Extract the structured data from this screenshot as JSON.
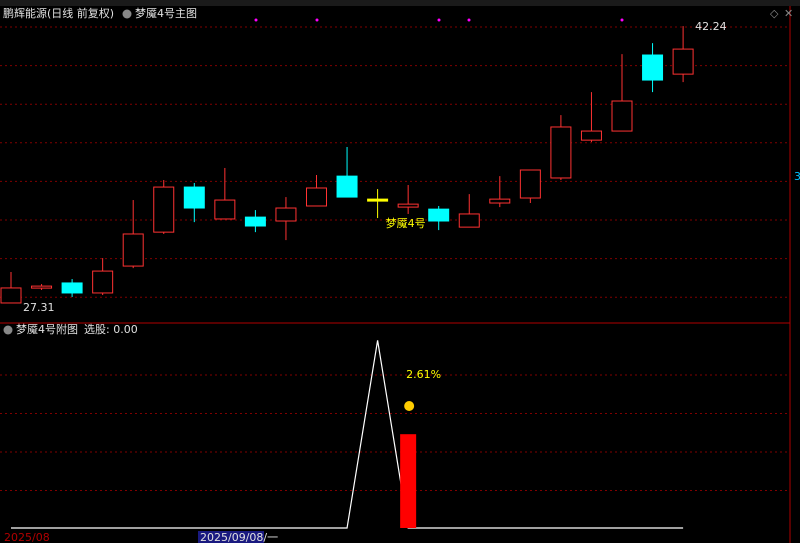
{
  "chart_data": [
    {
      "type": "candlestick",
      "title": "鹏辉能源(日线 前复权)",
      "subtitle": "梦魇4号主图",
      "open": [
        27.31,
        28.12,
        28.39,
        27.85,
        29.3,
        31.13,
        33.56,
        31.84,
        31.94,
        31.73,
        32.54,
        34.15,
        32.91,
        32.48,
        32.37,
        31.4,
        32.7,
        32.97,
        34.05,
        36.09,
        36.58,
        40.68,
        39.65
      ],
      "high": [
        28.98,
        28.33,
        28.6,
        29.73,
        32.86,
        33.94,
        33.78,
        34.59,
        32.32,
        33.02,
        34.21,
        35.72,
        33.45,
        33.67,
        32.54,
        33.18,
        34.15,
        34.48,
        37.44,
        38.68,
        40.73,
        41.32,
        42.24
      ],
      "low": [
        27.31,
        28.01,
        27.63,
        27.74,
        29.19,
        31.03,
        31.67,
        31.84,
        31.13,
        30.7,
        32.54,
        33.02,
        31.89,
        32.11,
        31.24,
        31.4,
        32.48,
        32.7,
        33.94,
        35.99,
        36.58,
        38.68,
        39.22
      ],
      "close": [
        28.12,
        28.22,
        27.85,
        29.03,
        31.03,
        33.56,
        32.43,
        32.86,
        31.46,
        32.43,
        33.51,
        33.02,
        32.91,
        32.64,
        31.73,
        32.11,
        32.91,
        34.48,
        36.8,
        36.58,
        38.2,
        39.33,
        41.0
      ],
      "up_color": "#ff3232",
      "down_color": "#00ffff",
      "flat_color": "#ffff00",
      "ylim": [
        26.5,
        42.73
      ],
      "grid": true,
      "annotations": [
        {
          "text": "42.24",
          "at": "high",
          "index": 22
        },
        {
          "text": "27.31",
          "at": "low",
          "index": 0
        },
        {
          "text": "梦魇4号",
          "at": "low",
          "index": 12
        }
      ],
      "right_marker": "3"
    },
    {
      "type": "line_bar",
      "title": "梦魇4号附图",
      "subtitle": "选股: 0.00",
      "line": {
        "color": "#ffffff",
        "values": [
          0,
          0,
          0,
          0,
          0,
          0,
          0,
          0,
          0,
          0,
          0,
          0,
          1,
          0,
          0,
          0,
          0,
          0,
          0,
          0,
          0,
          0,
          0
        ]
      },
      "bar": {
        "color": "#ff0000",
        "index": 13,
        "value": 0.5
      },
      "ylim": [
        0,
        1.05
      ],
      "grid": true,
      "annotations": [
        {
          "text": "2.61%",
          "index": 13
        }
      ],
      "x_labels": [
        "2025/08",
        "2025/09/08/一"
      ]
    }
  ]
}
